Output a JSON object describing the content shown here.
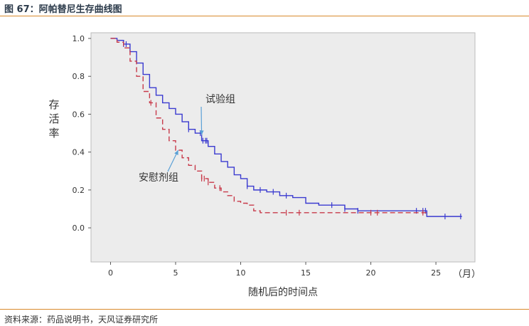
{
  "header": {
    "title": "图 67：阿帕替尼生存曲线图"
  },
  "footer": {
    "source": "资料来源：药品说明书，天风证券研究所"
  },
  "chart_data": {
    "type": "line",
    "title": "",
    "xlabel": "随机后的时间点",
    "ylabel": "存活率",
    "x_unit": "（月）",
    "xlim": [
      -1.5,
      28
    ],
    "ylim": [
      -0.18,
      1.03
    ],
    "x_ticks": [
      0,
      5,
      10,
      15,
      20,
      25
    ],
    "y_ticks": [
      0.0,
      0.2,
      0.4,
      0.6,
      0.8,
      1.0
    ],
    "x_tick_labels": [
      "0",
      "5",
      "10",
      "15",
      "20",
      "25"
    ],
    "y_tick_labels": [
      "0.0",
      "0.2",
      "0.4",
      "0.6",
      "0.8",
      "1.0"
    ],
    "series": [
      {
        "name": "试验组",
        "color": "#3a3ad0",
        "style": "solid",
        "points": [
          [
            0,
            1.0
          ],
          [
            0.5,
            0.99
          ],
          [
            1.0,
            0.97
          ],
          [
            1.5,
            0.93
          ],
          [
            2.0,
            0.87
          ],
          [
            2.5,
            0.81
          ],
          [
            3.0,
            0.74
          ],
          [
            3.5,
            0.7
          ],
          [
            4.0,
            0.66
          ],
          [
            4.5,
            0.63
          ],
          [
            5.0,
            0.6
          ],
          [
            5.5,
            0.56
          ],
          [
            6.0,
            0.52
          ],
          [
            6.5,
            0.5
          ],
          [
            7.0,
            0.46
          ],
          [
            7.5,
            0.43
          ],
          [
            8.0,
            0.39
          ],
          [
            8.5,
            0.35
          ],
          [
            9.0,
            0.32
          ],
          [
            9.5,
            0.28
          ],
          [
            10.0,
            0.26
          ],
          [
            10.5,
            0.22
          ],
          [
            11.0,
            0.2
          ],
          [
            12.0,
            0.19
          ],
          [
            13.0,
            0.17
          ],
          [
            14.0,
            0.16
          ],
          [
            15.0,
            0.13
          ],
          [
            16.0,
            0.12
          ],
          [
            17.0,
            0.12
          ],
          [
            18.0,
            0.1
          ],
          [
            19.0,
            0.09
          ],
          [
            20.0,
            0.09
          ],
          [
            22.0,
            0.09
          ],
          [
            24.0,
            0.09
          ],
          [
            24.3,
            0.06
          ],
          [
            27.0,
            0.06
          ]
        ],
        "censor_x": [
          1.0,
          1.2,
          6.0,
          6.9,
          7.1,
          7.3,
          7.4,
          10.5,
          11.5,
          12.5,
          13.5,
          17.0,
          18.0,
          19.0,
          23.5,
          24.0,
          24.2,
          25.7,
          26.9
        ]
      },
      {
        "name": "安慰剂组",
        "color": "#c83a4a",
        "style": "dashed",
        "points": [
          [
            0,
            1.0
          ],
          [
            0.5,
            0.98
          ],
          [
            1.0,
            0.95
          ],
          [
            1.5,
            0.88
          ],
          [
            2.0,
            0.8
          ],
          [
            2.5,
            0.72
          ],
          [
            3.0,
            0.66
          ],
          [
            3.5,
            0.58
          ],
          [
            4.0,
            0.52
          ],
          [
            4.5,
            0.46
          ],
          [
            5.0,
            0.41
          ],
          [
            5.5,
            0.37
          ],
          [
            6.0,
            0.33
          ],
          [
            6.5,
            0.3
          ],
          [
            7.0,
            0.26
          ],
          [
            7.5,
            0.24
          ],
          [
            8.0,
            0.21
          ],
          [
            8.5,
            0.19
          ],
          [
            9.0,
            0.17
          ],
          [
            9.5,
            0.14
          ],
          [
            10.0,
            0.13
          ],
          [
            10.5,
            0.12
          ],
          [
            11.0,
            0.09
          ],
          [
            11.5,
            0.08
          ],
          [
            14.0,
            0.08
          ],
          [
            20.0,
            0.08
          ],
          [
            24.3,
            0.08
          ]
        ],
        "censor_x": [
          3.1,
          7.0,
          7.2,
          7.5,
          8.4,
          13.5,
          14.5,
          20.0,
          20.5,
          24.0
        ]
      }
    ],
    "annotations": [
      {
        "text": "试验组",
        "arrow_to": [
          7.0,
          0.49
        ]
      },
      {
        "text": "安慰剂组",
        "arrow_to": [
          5.2,
          0.41
        ]
      }
    ]
  }
}
